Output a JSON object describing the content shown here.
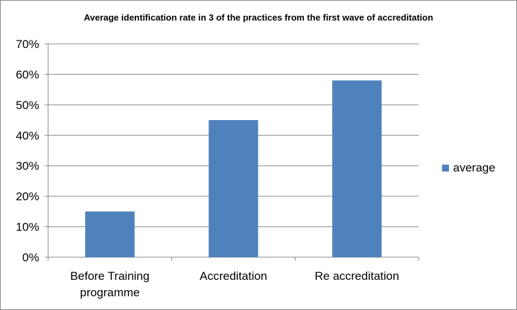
{
  "chart_data": {
    "type": "bar",
    "title": "Average identification rate in 3 of the practices from the first wave of accreditation",
    "categories": [
      "Before Training programme",
      "Accreditation",
      "Re accreditation"
    ],
    "category_lines": [
      [
        "Before Training",
        "programme"
      ],
      [
        "Accreditation"
      ],
      [
        "Re accreditation"
      ]
    ],
    "series": [
      {
        "name": "average",
        "values": [
          0.15,
          0.45,
          0.58
        ],
        "color": "#4F81BD"
      }
    ],
    "ylim": [
      0,
      0.7
    ],
    "y_ticks": [
      0,
      0.1,
      0.2,
      0.3,
      0.4,
      0.5,
      0.6,
      0.7
    ],
    "y_tick_labels": [
      "0%",
      "10%",
      "20%",
      "30%",
      "40%",
      "50%",
      "60%",
      "70%"
    ],
    "grid": true,
    "legend_position": "right"
  }
}
